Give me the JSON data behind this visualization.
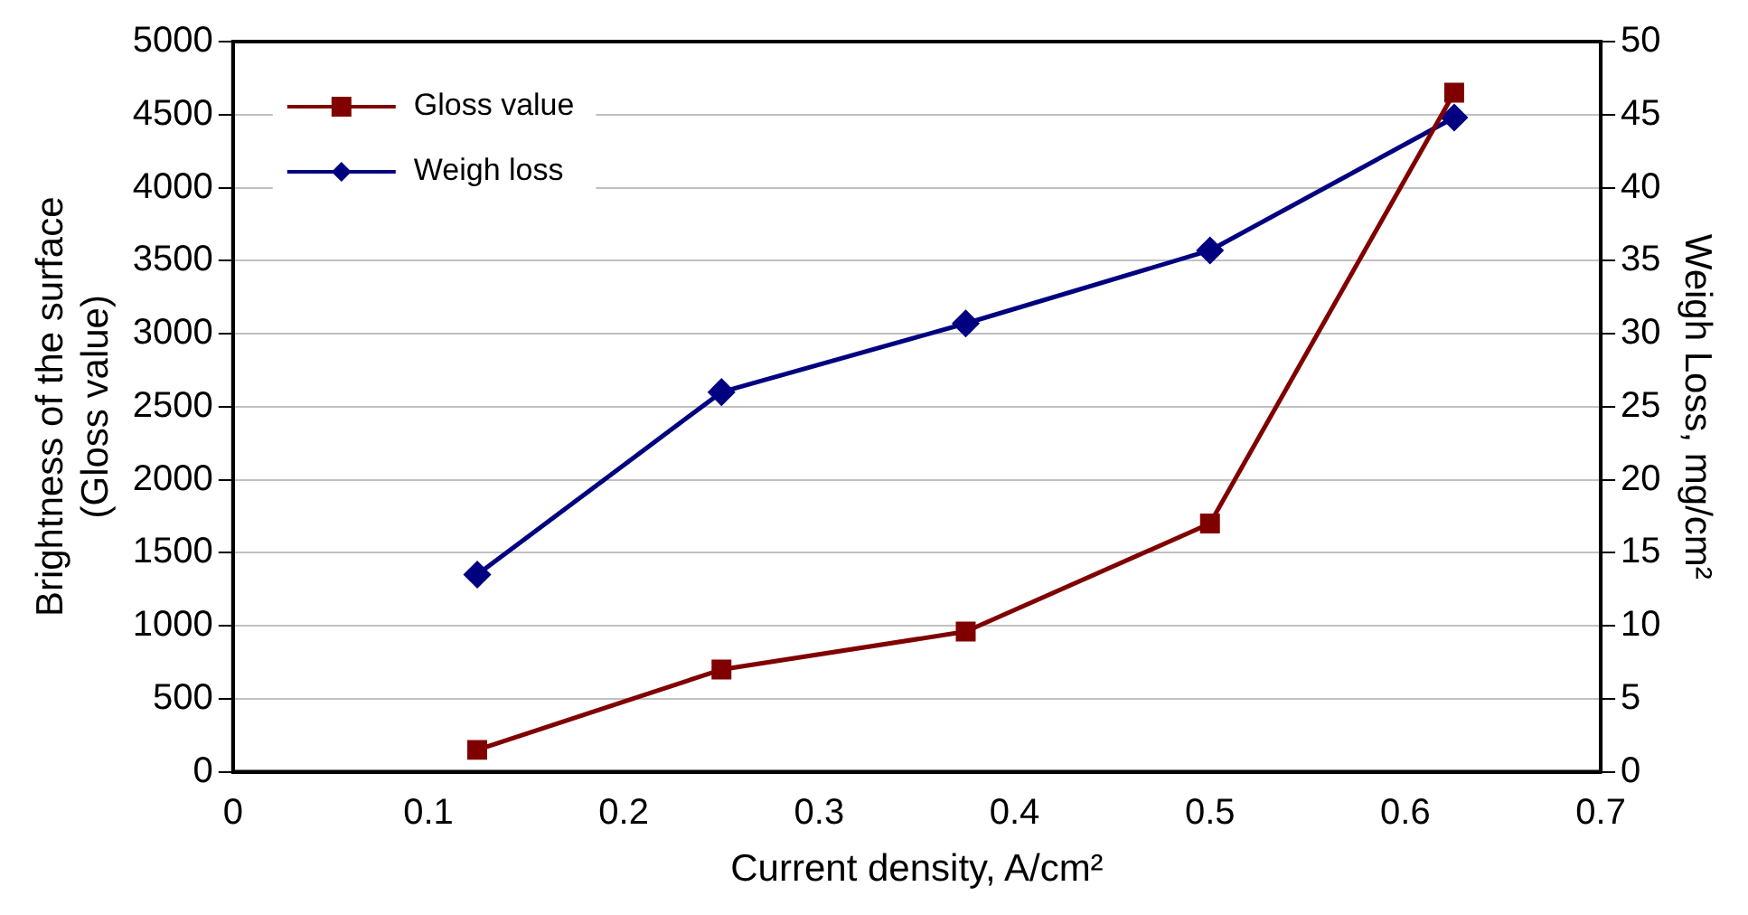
{
  "chart_data": {
    "type": "line",
    "xlabel": "Current density, A/cm²",
    "ylabel": "Brightness of the surface\n(Gloss value)",
    "y2label": "Weigh Loss, mg/cm²",
    "x": [
      0.125,
      0.25,
      0.375,
      0.5,
      0.625
    ],
    "series": [
      {
        "name": "Gloss value",
        "color": "#800000",
        "marker": "square",
        "values": [
          150,
          700,
          960,
          1700,
          4650
        ]
      },
      {
        "name": "Weigh loss",
        "color": "#000080",
        "marker": "diamond",
        "axis": "y2",
        "values": [
          13.5,
          26.0,
          30.7,
          35.7,
          44.8
        ]
      }
    ],
    "xlim": [
      0,
      0.7
    ],
    "xticks": [
      0,
      0.1,
      0.2,
      0.3,
      0.4,
      0.5,
      0.6,
      0.7
    ],
    "ylim": [
      0,
      5000
    ],
    "yticks": [
      0,
      500,
      1000,
      1500,
      2000,
      2500,
      3000,
      3500,
      4000,
      4500,
      5000
    ],
    "y2lim": [
      0,
      50
    ],
    "y2ticks": [
      0,
      5,
      10,
      15,
      20,
      25,
      30,
      35,
      40,
      45,
      50
    ],
    "grid": "y",
    "legend": "top left",
    "line_style": "solid"
  }
}
